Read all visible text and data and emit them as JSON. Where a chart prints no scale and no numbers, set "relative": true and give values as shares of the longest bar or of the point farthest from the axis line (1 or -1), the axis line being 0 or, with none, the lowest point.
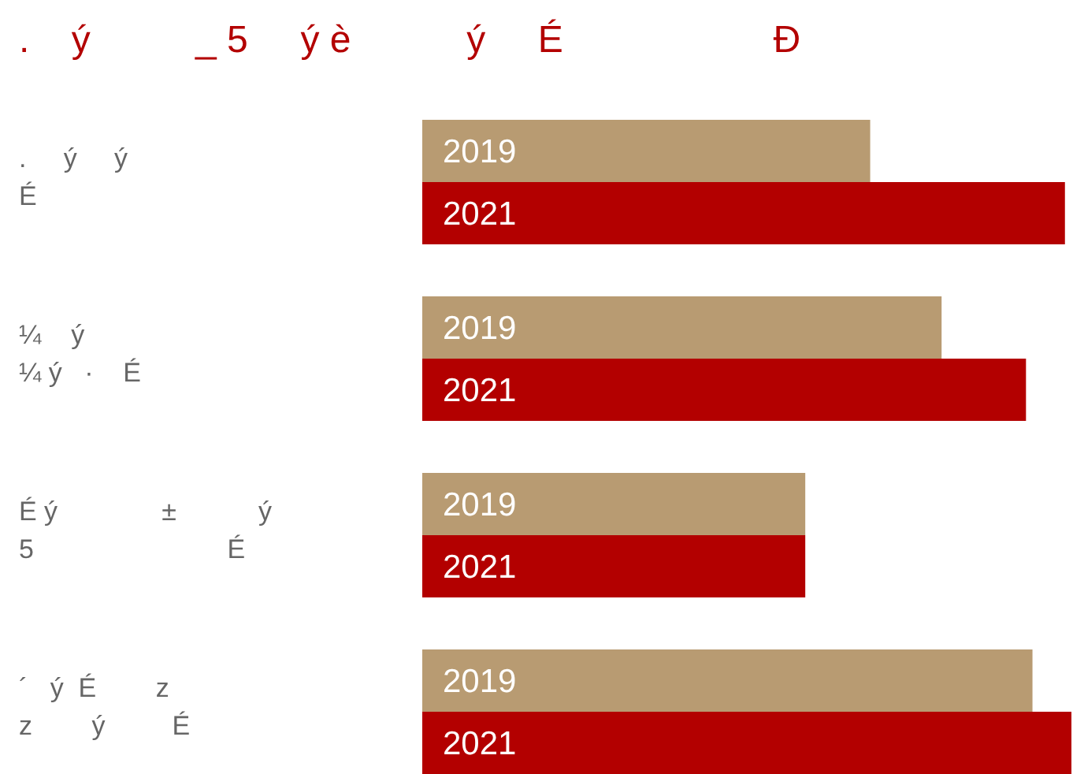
{
  "chart_data": {
    "type": "bar",
    "orientation": "horizontal",
    "relative": true,
    "title": ".    ý          _ 5     ý è           ý     É                    Đ",
    "categories": [
      ".     ý     ý\nÉ",
      "¼    ý\n¼ ý   ·    É",
      "É ý              ±           ý\n5                          É",
      "´   ý  É        z\nz        ý         É"
    ],
    "series": [
      {
        "name": "2019",
        "color": "#b89b72",
        "values": [
          0.69,
          0.8,
          0.59,
          0.94
        ]
      },
      {
        "name": "2021",
        "color": "#b30000",
        "values": [
          0.99,
          0.93,
          0.59,
          1
        ]
      }
    ]
  }
}
